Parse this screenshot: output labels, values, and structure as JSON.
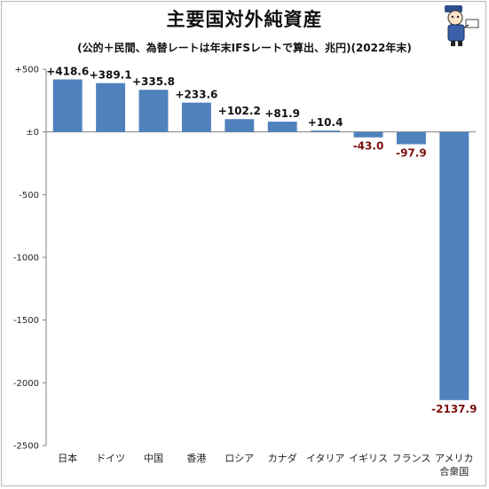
{
  "title": "主要国対外純資産",
  "subtitle": "(公的＋民間、為替レートは年末IFSレートで算出、兆円)(2022年末)",
  "colors": {
    "bar": "#4f81bd",
    "positive_label": "#111111",
    "negative_label": "#7b1010"
  },
  "chart_data": {
    "type": "bar",
    "title": "主要国対外純資産",
    "subtitle": "(公的＋民間、為替レートは年末IFSレートで算出、兆円)(2022年末)",
    "xlabel": "",
    "ylabel": "",
    "categories": [
      "日本",
      "ドイツ",
      "中国",
      "香港",
      "ロシア",
      "カナダ",
      "イタリア",
      "イギリス",
      "フランス",
      "アメリカ\n合衆国"
    ],
    "values": [
      418.6,
      389.1,
      335.8,
      233.6,
      102.2,
      81.9,
      10.4,
      -43.0,
      -97.9,
      -2137.9
    ],
    "value_labels": [
      "+418.6",
      "+389.1",
      "+335.8",
      "+233.6",
      "+102.2",
      "+81.9",
      "+10.4",
      "-43.0",
      "-97.9",
      "-2137.9"
    ],
    "ylim": [
      -2500,
      500
    ],
    "yticks": [
      500,
      0,
      -500,
      -1000,
      -1500,
      -2000,
      -2500
    ],
    "ytick_labels": [
      "+500",
      "±0",
      "-500",
      "-1000",
      "-1500",
      "-2000",
      "-2500"
    ],
    "grid": false,
    "legend": "none"
  }
}
